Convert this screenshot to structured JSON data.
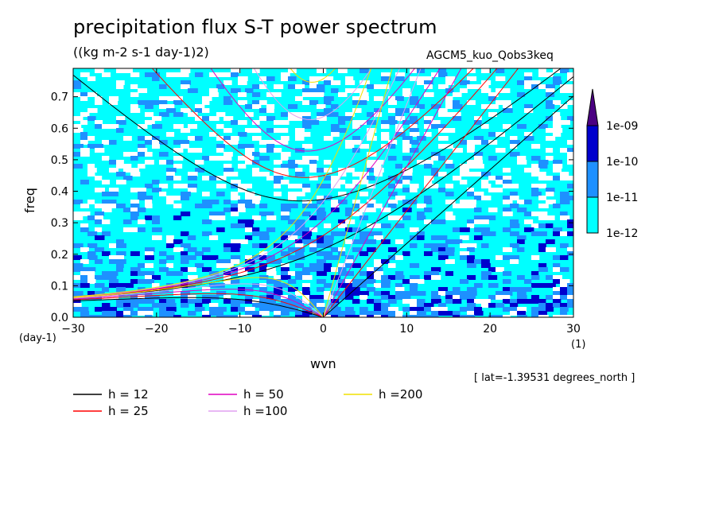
{
  "chart_data": {
    "type": "heatmap",
    "title": "precipitation flux S-T power spectrum",
    "units_label": "((kg m-2 s-1 day-1)2)",
    "run_name": "AGCM5_kuo_Qobs3keq",
    "xlabel": "wvn",
    "ylabel": "freq",
    "x_unit": "(1)",
    "y_unit": "(day-1)",
    "xlim": [
      -30,
      30
    ],
    "ylim": [
      0,
      0.79
    ],
    "x_ticks": [
      "−30",
      "−20",
      "−10",
      "0",
      "10",
      "20",
      "30"
    ],
    "y_ticks": [
      "0.0",
      "0.1",
      "0.2",
      "0.3",
      "0.4",
      "0.5",
      "0.6",
      "0.7"
    ],
    "colorbar": {
      "levels": [
        "1e-12",
        "1e-11",
        "1e-10",
        "1e-09"
      ],
      "colors": [
        "#00ffff",
        "#1e90ff",
        "#0000cd",
        "#4b0082"
      ]
    },
    "lat_info": "[ lat=-1.39531 degrees_north ]",
    "dispersion_curves": [
      {
        "label": "h = 12",
        "color": "#000000"
      },
      {
        "label": "h = 25",
        "color": "#ff0000"
      },
      {
        "label": "h = 50",
        "color": "#e000c0"
      },
      {
        "label": "h =100",
        "color": "#e0a0f0"
      },
      {
        "label": "h =200",
        "color": "#f0e000"
      }
    ]
  }
}
